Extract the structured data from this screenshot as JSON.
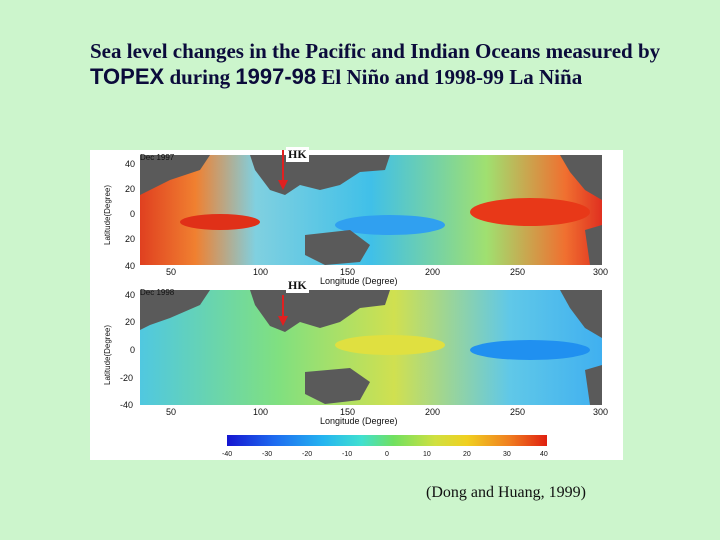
{
  "title": {
    "part1": "Sea level changes in the Pacific and Indian Oceans measured by ",
    "instrument": "TOPEX",
    "part2": " during ",
    "year1": "1997-98",
    "part3": " El Niño and 1998-99 La Niña"
  },
  "panels": [
    {
      "id": "top",
      "date_label": "Dec 1997",
      "marker_label": "HK",
      "ylabel": "Latitude(Degree)",
      "yticks": [
        "40",
        "20",
        "0",
        "20",
        "40"
      ],
      "xticks": [
        "50",
        "100",
        "150",
        "200",
        "250",
        "300"
      ],
      "xlabel": "Longitude (Degree)"
    },
    {
      "id": "bottom",
      "date_label": "Dec 1998",
      "marker_label": "HK",
      "ylabel": "Latitude(Degree)",
      "yticks": [
        "40",
        "20",
        "0",
        "-20",
        "-40"
      ],
      "xticks": [
        "50",
        "100",
        "150",
        "200",
        "250",
        "300"
      ],
      "xlabel": "Longitude (Degree)"
    }
  ],
  "colorbar": {
    "ticks": [
      "-40",
      "-30",
      "-20",
      "-10",
      "0",
      "10",
      "20",
      "30",
      "40"
    ],
    "colors": [
      "#1515d0",
      "#1e6cf0",
      "#24b4f0",
      "#40e0d0",
      "#60e060",
      "#d0e040",
      "#f0d020",
      "#f08020",
      "#e02010"
    ]
  },
  "citation": "(Dong and Huang, 1999)",
  "colors": {
    "background": "#ccf5cc",
    "land": "#5a5a5a",
    "arrow": "#e02020"
  }
}
